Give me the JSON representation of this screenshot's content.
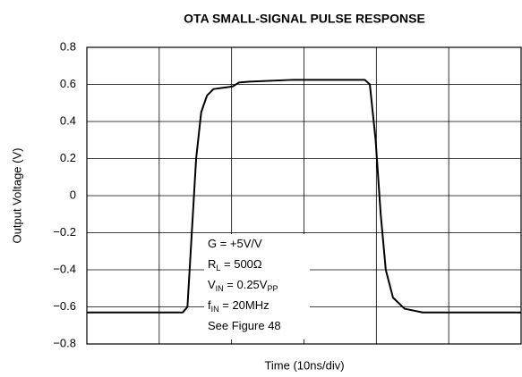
{
  "chart_data": {
    "type": "line",
    "title": "OTA SMALL-SIGNAL PULSE RESPONSE",
    "x_label": "Time (10ns/div)",
    "y_label": "Output Voltage (V)",
    "xlim": [
      0,
      60
    ],
    "xticks": [
      0,
      10,
      20,
      30,
      40,
      50,
      60
    ],
    "ylim": [
      -0.8,
      0.8
    ],
    "yticks": [
      {
        "value": -0.8,
        "label": "−0.8"
      },
      {
        "value": -0.6,
        "label": "−0.6"
      },
      {
        "value": -0.4,
        "label": "−0.4"
      },
      {
        "value": -0.2,
        "label": "−0.2"
      },
      0,
      0.2,
      0.4,
      0.6,
      0.8
    ],
    "grid": true,
    "series": [
      {
        "color": "#000000",
        "x": [
          0,
          13.25,
          13.9,
          14.5,
          15.1,
          15.8,
          16.6,
          17.5,
          19.4,
          20.2,
          21.0,
          22.5,
          28.6,
          34.7,
          38.4,
          39.1,
          39.9,
          40.6,
          41.3,
          42.3,
          43.9,
          46.4,
          60
        ],
        "values": [
          -0.63,
          -0.63,
          -0.6,
          -0.2,
          0.2,
          0.45,
          0.54,
          0.575,
          0.585,
          0.59,
          0.61,
          0.615,
          0.625,
          0.625,
          0.625,
          0.6,
          0.3,
          -0.1,
          -0.4,
          -0.55,
          -0.61,
          -0.63,
          -0.63
        ]
      }
    ],
    "annotations": [
      [
        "G = +5V/V"
      ],
      [
        "R",
        "L",
        " = 500Ω"
      ],
      [
        "V",
        "IN",
        " = 0.25V",
        "PP"
      ],
      [
        "f",
        "IN",
        " = 20MHz"
      ],
      [
        "See Figure 48"
      ]
    ]
  }
}
